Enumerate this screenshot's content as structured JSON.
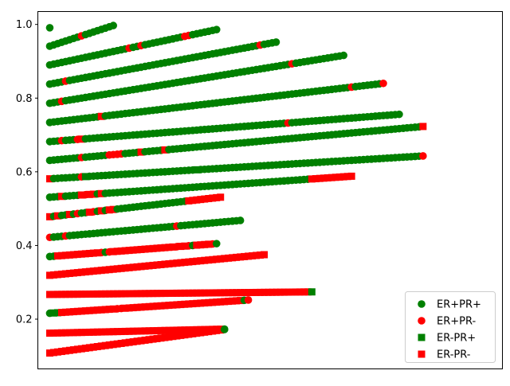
{
  "chart_data": {
    "type": "scatter",
    "title": "",
    "xlabel": "",
    "ylabel": "",
    "xlim": [
      -3,
      114
    ],
    "ylim": [
      0.065,
      1.035
    ],
    "x_ticks_visible": false,
    "y_ticks": [
      "0.2",
      "0.4",
      "0.6",
      "0.8",
      "1.0"
    ],
    "grid": false,
    "legend_position": "lower-right",
    "legend": [
      {
        "label": "ER+PR+",
        "marker": "circle",
        "color": "#008000"
      },
      {
        "label": "ER+PR-",
        "marker": "circle",
        "color": "#ff0000"
      },
      {
        "label": "ER-PR+",
        "marker": "square",
        "color": "#008000"
      },
      {
        "label": "ER-PR-",
        "marker": "square",
        "color": "#ff0000"
      }
    ],
    "rows": [
      {
        "y": [
          0.991
        ],
        "seq": "A"
      },
      {
        "y": [
          0.941,
          0.997
        ],
        "seq": "AAAAAAAABAAAAAAAA"
      },
      {
        "y": [
          0.89,
          0.986
        ],
        "seq": "AAAAAAAAAAAAAAAAAAAABAABAAAAAAAAAABBAAAAAAA"
      },
      {
        "y": [
          0.838,
          0.952
        ],
        "seq": "AAAABAAAAAAAAAAAAAAAAAAAAAAAAAAAAAAAAAAAAAAAAAAAAAAAABAAAA"
      },
      {
        "y": [
          0.786,
          0.916
        ],
        "seq": "AAABAAAAAAAAAAAAAAAAAAAAAAAAAAAAAAAAAAAAAAAAAAAAAAAAAAAAAAAAABAAAAAAAAAAAAA"
      },
      {
        "y": [
          0.734,
          0.84
        ],
        "seq": "AAAAAAAAAAAAADAAAAAAAAAAAAAAAAAAAAAAAAAAAAAAAAAAAAAAAAAAAAAAAAAAAAAAAAAAAAAABAAAAAAAB"
      },
      {
        "y": [
          0.682,
          0.756
        ],
        "seq": "AAABAAABDAAAAAAAAAAAAAAAAAAAAAAAAAAAAAAAAAAAAAAAAAAAAAAAAAAABAAAAAAAAAAAAAAAAAAAAAAAAAAAA"
      },
      {
        "y": [
          0.631,
          0.723
        ],
        "seq": "AAAAAAAABAAAAAABBBBAAAADAAAAADAAAAAAAAAAAAAAAAAAAAAAAAAAAAAAAAAAAAAAAAAAAAAAAAAAAAAAAAAAAAAAAAD"
      },
      {
        "y": [
          0.581,
          0.643
        ],
        "seq": "DAAAAAAABCAAAAAAAAAAAAAAAAAAAAAAAAAAACAAAAAAAAAAAAAAAAAAAAAAAAAAAAAAAAAAAAAAAAAAAAAAAAAAAAAAAAB"
      },
      {
        "y": [
          0.531,
          0.588
        ],
        "seq": "AAADAAAADBDDADAAAAAAAAAAAAAAAAAAAAAAAAAAAAAAAAAAAAAAAAAAAAAAAAAAAADDDDDDDDDDD"
      },
      {
        "y": [
          0.478,
          0.531
        ],
        "seq": "DADAADABAADBADADDAAAAAAAAAAAAAAAAAADDDDDDDDD"
      },
      {
        "y": [
          0.422,
          0.468
        ],
        "seq": "BAAABAAAAAAAAAAAAAAAAAAAAAAAAAAABAAAAAAAAAAAAAAAA"
      },
      {
        "y": [
          0.37,
          0.405
        ],
        "seq": "AADDDDDDDDDDDBABDDDDDDDDDDDDDDDDBDDBADDDDBA"
      },
      {
        "y": [
          0.319,
          0.375
        ],
        "seq": "DDDDDDDDDDDDDDDDDDDDDDDDDDDDDDDDDDDDDDDDDDDDDDDDDDDDDDD"
      },
      {
        "y": [
          0.267,
          0.274
        ],
        "seq": "DDDDDDDDDDDDDDDDDDDDDDDDDDDDDDDDDDDDDDDDDDDDDDDDDDDDDDDDDDDDDDDDDDC"
      },
      {
        "y": [
          0.216,
          0.252
        ],
        "seq": "ACCDDDDDDDDDDDDDDBBDDDDDDDDDDDDDDDDDDDDDDDDDDDDDDAB"
      },
      {
        "y": [
          0.162,
          0.173
        ],
        "seq": "DDDDDDDDDDDDDDDDDDDDDDDDDDDDDDDDDDDDDDDDDDDDA"
      },
      {
        "y": [
          0.108,
          0.172
        ],
        "seq": "DDDDDDDDDDDDDDDDDDDDDDDDDDDDDDDDDDDDDDDDDDDDA"
      }
    ]
  }
}
